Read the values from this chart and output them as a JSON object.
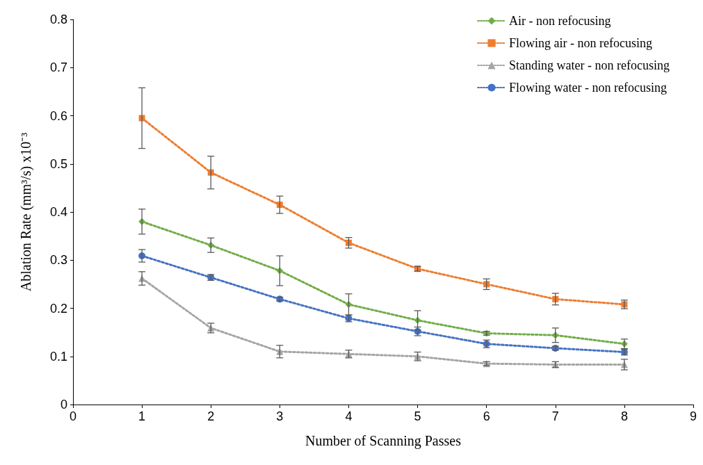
{
  "chart_data": {
    "type": "line",
    "xlabel": "Number of Scanning Passes",
    "ylabel": "Ablation Rate (mm³/s) x10⁻³",
    "x": [
      1,
      2,
      3,
      4,
      5,
      6,
      7,
      8
    ],
    "series": [
      {
        "name": "Air - non refocusing",
        "color": "#70ad47",
        "marker": "diamond",
        "values": [
          0.38,
          0.331,
          0.278,
          0.208,
          0.175,
          0.148,
          0.144,
          0.126
        ],
        "errors": [
          0.026,
          0.015,
          0.031,
          0.022,
          0.02,
          0.004,
          0.015,
          0.01
        ]
      },
      {
        "name": "Flowing air - non refocusing",
        "color": "#ed7d31",
        "marker": "square",
        "values": [
          0.595,
          0.482,
          0.415,
          0.336,
          0.282,
          0.25,
          0.219,
          0.208
        ],
        "errors": [
          0.063,
          0.034,
          0.018,
          0.011,
          0.005,
          0.011,
          0.012,
          0.009
        ]
      },
      {
        "name": "Standing water - non refocusing",
        "color": "#a5a5a5",
        "marker": "triangle",
        "values": [
          0.262,
          0.159,
          0.11,
          0.105,
          0.1,
          0.085,
          0.083,
          0.083
        ],
        "errors": [
          0.014,
          0.01,
          0.013,
          0.008,
          0.009,
          0.004,
          0.006,
          0.011
        ]
      },
      {
        "name": "Flowing water - non refocusing",
        "color": "#4472c4",
        "marker": "circle",
        "values": [
          0.309,
          0.264,
          0.219,
          0.179,
          0.152,
          0.126,
          0.117,
          0.109
        ],
        "errors": [
          0.013,
          0.006,
          0.004,
          0.007,
          0.009,
          0.008,
          0.004,
          0.006
        ]
      }
    ],
    "xlim": [
      0,
      9
    ],
    "xticks": [
      0,
      1,
      2,
      3,
      4,
      5,
      6,
      7,
      8,
      9
    ],
    "ylim": [
      0,
      0.8
    ],
    "yticks": [
      0,
      0.1,
      0.2,
      0.3,
      0.4,
      0.5,
      0.6,
      0.7,
      0.8
    ],
    "grid": false,
    "legend": "top right",
    "line_style": "dotted"
  }
}
